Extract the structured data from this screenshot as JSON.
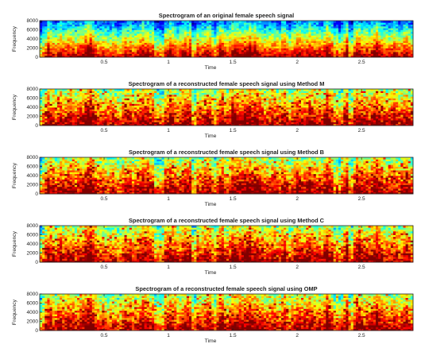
{
  "chart_data": [
    {
      "type": "heatmap",
      "title": "Spectrogram of an original female speech signal",
      "xlabel": "Time",
      "ylabel": "Frequency",
      "xlim": [
        0,
        2.9
      ],
      "ylim": [
        0,
        8000
      ],
      "x_ticks": [
        0.5,
        1,
        1.5,
        2,
        2.5
      ],
      "x_tick_labels": [
        "0.5",
        "1",
        "1.5",
        "2",
        "2.5"
      ],
      "y_ticks": [
        0,
        2000,
        4000,
        6000,
        8000
      ],
      "y_tick_labels": [
        "0",
        "2000",
        "4000",
        "6000",
        "8000"
      ],
      "colormap": "jet",
      "seed": 1
    },
    {
      "type": "heatmap",
      "title": "Spectrogram of a reconstructed female speech signal using Method M",
      "xlabel": "Time",
      "ylabel": "Frequency",
      "xlim": [
        0,
        2.9
      ],
      "ylim": [
        0,
        8000
      ],
      "x_ticks": [
        0.5,
        1,
        1.5,
        2,
        2.5
      ],
      "x_tick_labels": [
        "0.5",
        "1",
        "1.5",
        "2",
        "2.5"
      ],
      "y_ticks": [
        0,
        2000,
        4000,
        6000,
        8000
      ],
      "y_tick_labels": [
        "0",
        "2000",
        "4000",
        "6000",
        "8000"
      ],
      "colormap": "jet",
      "seed": 2
    },
    {
      "type": "heatmap",
      "title": "Spectrogram of a reconstructed female speech signal using Method B",
      "xlabel": "Time",
      "ylabel": "Frequency",
      "xlim": [
        0,
        2.9
      ],
      "ylim": [
        0,
        8000
      ],
      "x_ticks": [
        0.5,
        1,
        1.5,
        2,
        2.5
      ],
      "x_tick_labels": [
        "0.5",
        "1",
        "1.5",
        "2",
        "2.5"
      ],
      "y_ticks": [
        0,
        2000,
        4000,
        6000,
        8000
      ],
      "y_tick_labels": [
        "0",
        "2000",
        "4000",
        "6000",
        "8000"
      ],
      "colormap": "jet",
      "seed": 3
    },
    {
      "type": "heatmap",
      "title": "Spectrogram of a reconstructed female speech signal using Method C",
      "xlabel": "Time",
      "ylabel": "Frequency",
      "xlim": [
        0,
        2.9
      ],
      "ylim": [
        0,
        8000
      ],
      "x_ticks": [
        0.5,
        1,
        1.5,
        2,
        2.5
      ],
      "x_tick_labels": [
        "0.5",
        "1",
        "1.5",
        "2",
        "2.5"
      ],
      "y_ticks": [
        0,
        2000,
        4000,
        6000,
        8000
      ],
      "y_tick_labels": [
        "0",
        "2000",
        "4000",
        "6000",
        "8000"
      ],
      "colormap": "jet",
      "seed": 4
    },
    {
      "type": "heatmap",
      "title": "Spectrogram of a reconstructed female speech signal using OMP",
      "xlabel": "Time",
      "ylabel": "Frequency",
      "xlim": [
        0,
        2.9
      ],
      "ylim": [
        0,
        8000
      ],
      "x_ticks": [
        0.5,
        1,
        1.5,
        2,
        2.5
      ],
      "x_tick_labels": [
        "0.5",
        "1",
        "1.5",
        "2",
        "2.5"
      ],
      "y_ticks": [
        0,
        2000,
        4000,
        6000,
        8000
      ],
      "y_tick_labels": [
        "0",
        "2000",
        "4000",
        "6000",
        "8000"
      ],
      "colormap": "jet",
      "seed": 5
    }
  ]
}
